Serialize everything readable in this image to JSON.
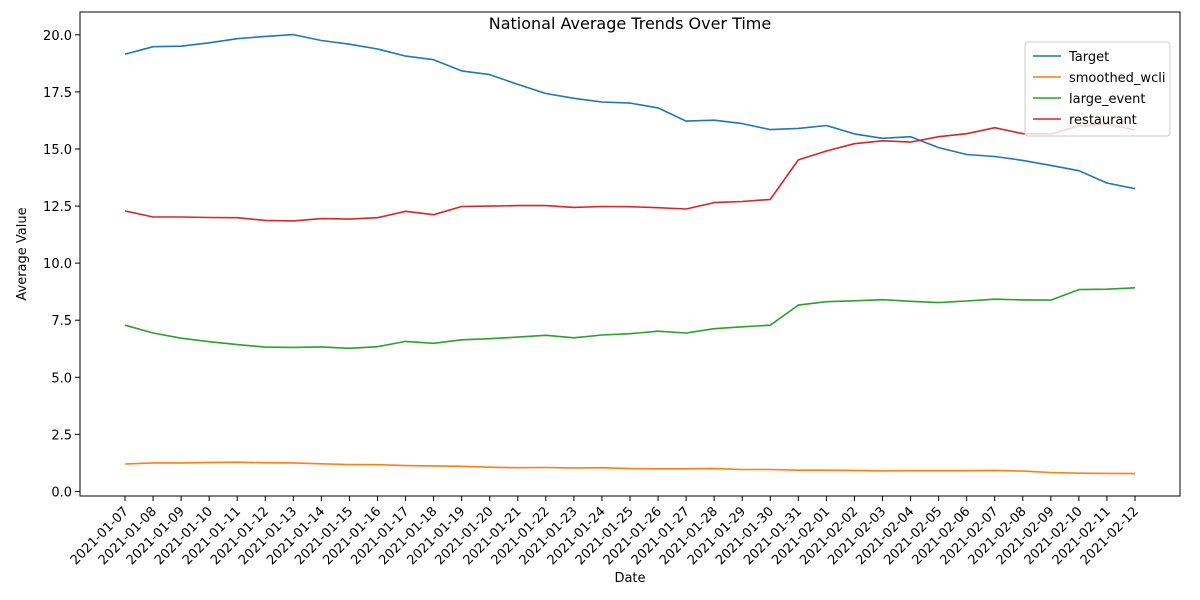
{
  "chart_data": {
    "type": "line",
    "title": "National Average Trends Over Time",
    "xlabel": "Date",
    "ylabel": "Average Value",
    "ylim": [
      0,
      21
    ],
    "yticks": [
      "0.0",
      "2.5",
      "5.0",
      "7.5",
      "10.0",
      "12.5",
      "15.0",
      "17.5",
      "20.0"
    ],
    "legend_position": "top-right",
    "grid": false,
    "categories": [
      "2021-01-07",
      "2021-01-08",
      "2021-01-09",
      "2021-01-10",
      "2021-01-11",
      "2021-01-12",
      "2021-01-13",
      "2021-01-14",
      "2021-01-15",
      "2021-01-16",
      "2021-01-17",
      "2021-01-18",
      "2021-01-19",
      "2021-01-20",
      "2021-01-21",
      "2021-01-22",
      "2021-01-23",
      "2021-01-24",
      "2021-01-25",
      "2021-01-26",
      "2021-01-27",
      "2021-01-28",
      "2021-01-29",
      "2021-01-30",
      "2021-01-31",
      "2021-02-01",
      "2021-02-02",
      "2021-02-03",
      "2021-02-04",
      "2021-02-05",
      "2021-02-06",
      "2021-02-07",
      "2021-02-08",
      "2021-02-09",
      "2021-02-10",
      "2021-02-11",
      "2021-02-12"
    ],
    "series": [
      {
        "name": "Target",
        "color": "#1f77b4",
        "values": [
          19.15,
          19.48,
          19.5,
          19.65,
          19.83,
          19.93,
          20.01,
          19.75,
          19.59,
          19.38,
          19.07,
          18.91,
          18.42,
          18.26,
          17.83,
          17.43,
          17.22,
          17.06,
          17.01,
          16.8,
          16.22,
          16.26,
          16.11,
          15.85,
          15.9,
          16.03,
          15.66,
          15.47,
          15.54,
          15.06,
          14.76,
          14.67,
          14.5,
          14.28,
          14.05,
          13.51,
          13.26
        ]
      },
      {
        "name": "smoothed_wcli",
        "color": "#ff7f0e",
        "values": [
          1.2,
          1.25,
          1.25,
          1.27,
          1.28,
          1.26,
          1.25,
          1.21,
          1.18,
          1.17,
          1.13,
          1.12,
          1.1,
          1.06,
          1.04,
          1.05,
          1.03,
          1.04,
          1.0,
          0.99,
          0.99,
          1.0,
          0.96,
          0.96,
          0.93,
          0.93,
          0.92,
          0.9,
          0.91,
          0.91,
          0.91,
          0.92,
          0.89,
          0.83,
          0.8,
          0.79,
          0.78
        ]
      },
      {
        "name": "large_event",
        "color": "#2ca02c",
        "values": [
          7.28,
          6.94,
          6.71,
          6.56,
          6.43,
          6.32,
          6.31,
          6.33,
          6.27,
          6.34,
          6.57,
          6.49,
          6.64,
          6.69,
          6.76,
          6.84,
          6.73,
          6.85,
          6.91,
          7.02,
          6.94,
          7.13,
          7.21,
          7.28,
          8.16,
          8.31,
          8.35,
          8.4,
          8.33,
          8.27,
          8.34,
          8.42,
          8.39,
          8.38,
          8.84,
          8.86,
          8.92
        ]
      },
      {
        "name": "restaurant",
        "color": "#d62728",
        "values": [
          12.29,
          12.02,
          12.02,
          12.0,
          11.99,
          11.87,
          11.85,
          11.95,
          11.93,
          11.99,
          12.27,
          12.12,
          12.48,
          12.5,
          12.52,
          12.52,
          12.44,
          12.48,
          12.47,
          12.43,
          12.37,
          12.65,
          12.7,
          12.79,
          14.52,
          14.91,
          15.23,
          15.36,
          15.3,
          15.54,
          15.67,
          15.93,
          15.67,
          15.65,
          16.01,
          16.1,
          15.83
        ]
      }
    ]
  }
}
